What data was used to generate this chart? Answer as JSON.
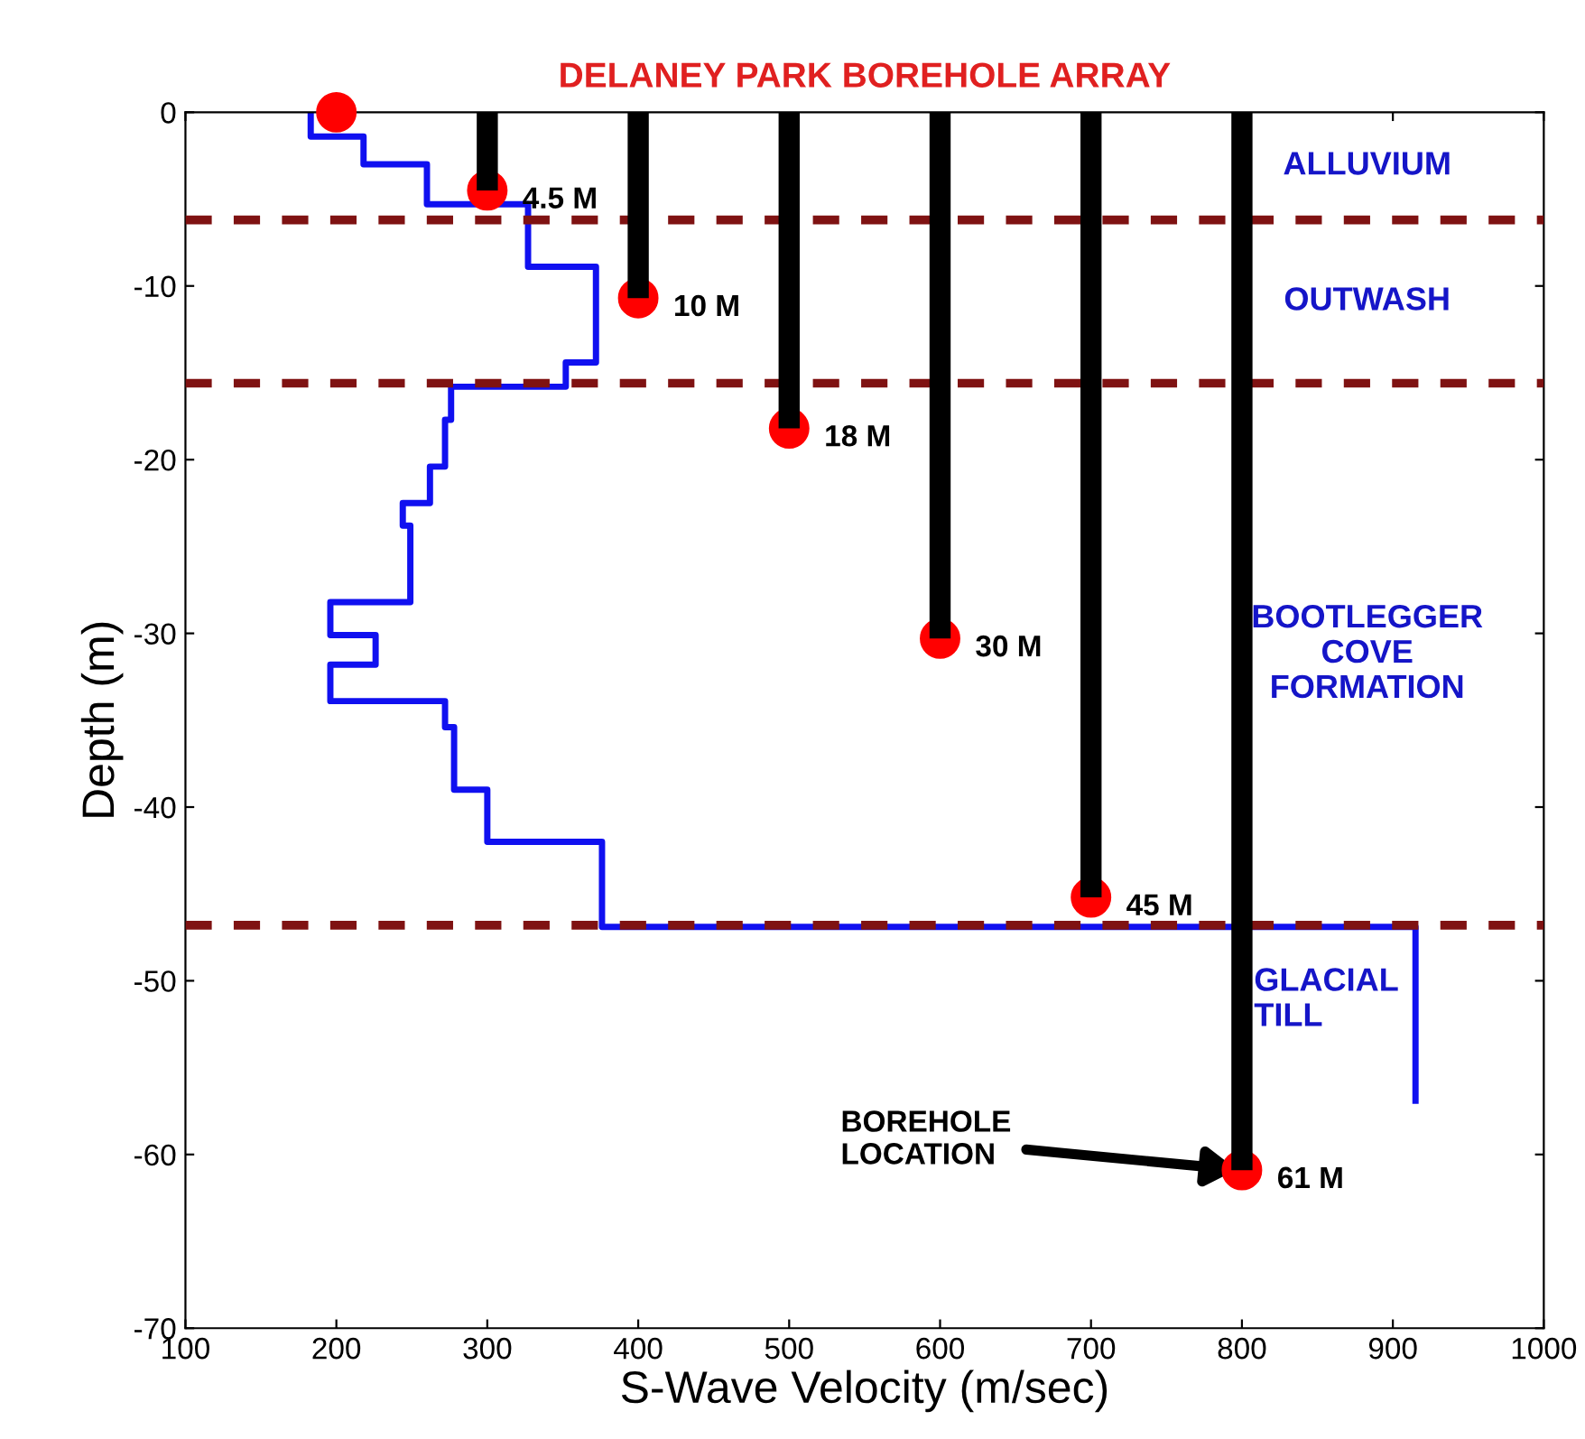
{
  "chart_data": {
    "type": "line",
    "title": "DELANEY PARK BOREHOLE ARRAY",
    "xlabel": "S-Wave Velocity (m/sec)",
    "ylabel": "Depth (m)",
    "xlim": [
      100,
      1000
    ],
    "ylim": [
      -70,
      0
    ],
    "xticks": [
      100,
      200,
      300,
      400,
      500,
      600,
      700,
      800,
      900,
      1000
    ],
    "yticks": [
      -70,
      -60,
      -50,
      -40,
      -30,
      -20,
      -10,
      0
    ],
    "grid": false,
    "legend": false,
    "series": [
      {
        "color": "#1010f0",
        "x": [
          183,
          183,
          218,
          218,
          260,
          260,
          327,
          327,
          372,
          372,
          352,
          352,
          276,
          276,
          272,
          272,
          262,
          262,
          244,
          244,
          249,
          249,
          196,
          196,
          226,
          226,
          196,
          196,
          272,
          272,
          278,
          278,
          300,
          300,
          376,
          376,
          915,
          915
        ],
        "values": [
          0,
          -1.4,
          -1.4,
          -3.0,
          -3.0,
          -5.3,
          -5.3,
          -8.9,
          -8.9,
          -14.4,
          -14.4,
          -15.8,
          -15.8,
          -17.7,
          -17.7,
          -20.4,
          -20.4,
          -22.5,
          -22.5,
          -23.8,
          -23.8,
          -28.2,
          -28.2,
          -30.1,
          -30.1,
          -31.8,
          -31.8,
          -33.9,
          -33.9,
          -35.4,
          -35.4,
          -39.0,
          -39.0,
          -42.0,
          -42.0,
          -46.9,
          -46.9,
          -56.9
        ]
      },
      {
        "type": "bar",
        "color": "#000000",
        "x": [
          300,
          400,
          500,
          600,
          700,
          800
        ],
        "values": [
          -4.5,
          -10.7,
          -18.2,
          -30.3,
          -45.2,
          -60.9
        ]
      },
      {
        "type": "scatter",
        "color": "#ff0000",
        "marker": "circle",
        "x": [
          200,
          300,
          400,
          500,
          600,
          700,
          800
        ],
        "values": [
          0,
          -4.5,
          -10.7,
          -18.2,
          -30.3,
          -45.2,
          -60.9
        ]
      }
    ],
    "ref_lines": [
      {
        "axis": "y",
        "value": -6.2,
        "color": "#7f1212",
        "line_style": "dashed"
      },
      {
        "axis": "y",
        "value": -15.6,
        "color": "#7f1212",
        "line_style": "dashed"
      },
      {
        "axis": "y",
        "value": -46.8,
        "color": "#7f1212",
        "line_style": "dashed"
      }
    ],
    "annotations": [
      {
        "text": "4.5 M",
        "x": 300,
        "y": -4.5
      },
      {
        "text": "10 M",
        "x": 400,
        "y": -10.7
      },
      {
        "text": "18 M",
        "x": 500,
        "y": -18.2
      },
      {
        "text": "30 M",
        "x": 600,
        "y": -30.3
      },
      {
        "text": "45 M",
        "x": 700,
        "y": -45.2
      },
      {
        "text": "61 M",
        "x": 800,
        "y": -60.9
      },
      "ALLUVIUM",
      "OUTWASH",
      "BOOTLEGGER\nCOVE\nFORMATION",
      "GLACIAL\nTILL",
      {
        "text": "BOREHOLE\nLOCATION",
        "x": 800,
        "y": -60.9
      }
    ]
  }
}
